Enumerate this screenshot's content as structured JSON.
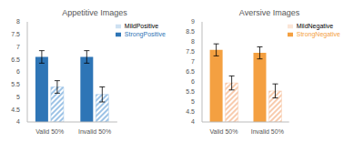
{
  "chart_data": [
    {
      "type": "bar",
      "title": "Appetitive Images",
      "categories": [
        "Valid 50%",
        "Invalid 50%"
      ],
      "series": [
        {
          "name": "StrongPositive",
          "color": "#2e75b6",
          "values": [
            6.6,
            6.6
          ],
          "errors": [
            0.25,
            0.25
          ]
        },
        {
          "name": "MildPositive",
          "color": "#9dc3e6",
          "values": [
            5.4,
            5.1
          ],
          "errors": [
            0.25,
            0.3
          ]
        }
      ],
      "ylim": [
        4,
        8
      ],
      "yticks": [
        4,
        4.5,
        5,
        5.5,
        6,
        6.5,
        7,
        7.5,
        8
      ],
      "grid": false,
      "legend": "upper right"
    },
    {
      "type": "bar",
      "title": "Aversive Images",
      "categories": [
        "Valid 50%",
        "Invalid 50%"
      ],
      "series": [
        {
          "name": "StrongNegative",
          "color": "#f4a041",
          "values": [
            7.6,
            7.45
          ],
          "errors": [
            0.3,
            0.3
          ]
        },
        {
          "name": "MildNegative",
          "color": "#f8cbad",
          "values": [
            5.95,
            5.55
          ],
          "errors": [
            0.35,
            0.35
          ]
        }
      ],
      "ylim": [
        4,
        9
      ],
      "yticks": [
        4,
        4.5,
        5,
        5.5,
        6,
        6.5,
        7,
        7.5,
        8,
        8.5,
        9
      ],
      "grid": false,
      "legend": "upper right"
    }
  ]
}
